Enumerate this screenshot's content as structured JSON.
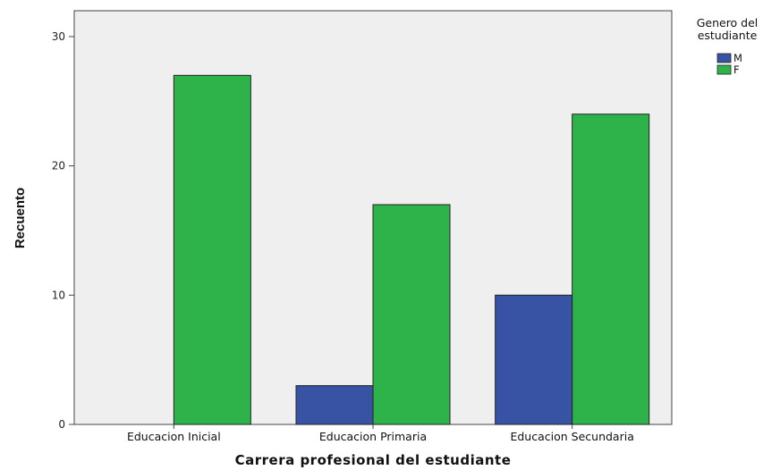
{
  "chart_data": {
    "type": "bar",
    "categories": [
      "Educacion Inicial",
      "Educacion Primaria",
      "Educacion Secundaria"
    ],
    "series": [
      {
        "name": "M",
        "values": [
          0,
          3,
          10
        ],
        "color": "#3953a4"
      },
      {
        "name": "F",
        "values": [
          27,
          17,
          24
        ],
        "color": "#2db34a"
      }
    ],
    "xlabel": "Carrera profesional del estudiante",
    "ylabel": "Recuento",
    "ylim": [
      0,
      32
    ],
    "yticks": [
      0,
      10,
      20,
      30
    ],
    "legend": {
      "title_lines": [
        "Genero del",
        "estudiante"
      ],
      "placement": "top-right"
    },
    "plot_background": "#efefef",
    "grid": false
  }
}
